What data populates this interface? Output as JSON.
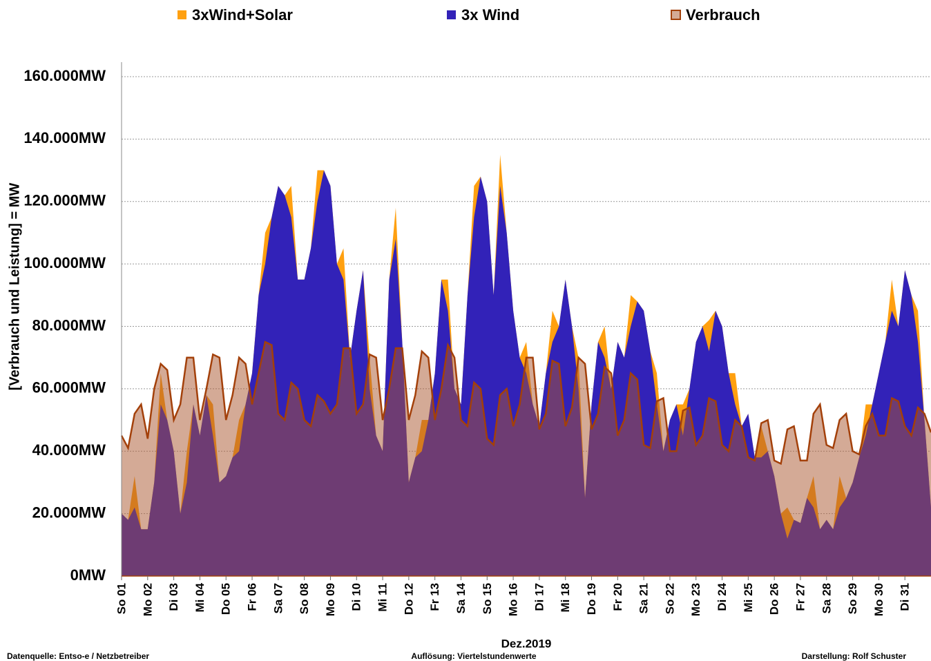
{
  "chart_data": {
    "type": "area",
    "xlabel": "Dez.2019",
    "ylabel": "[Verbrauch und Leistung] = MW",
    "footer": [
      "Datenquelle: Entso-e  / Netzbetreiber",
      "Auflösung: Viertelstundenwerte",
      "Darstellung: Rolf Schuster"
    ],
    "categories": [
      "So 01",
      null,
      null,
      null,
      "Mo 02",
      null,
      null,
      null,
      "Di 03",
      null,
      null,
      null,
      "Mi 04",
      null,
      null,
      null,
      "Do 05",
      null,
      null,
      null,
      "Fr 06",
      null,
      null,
      null,
      "Sa 07",
      null,
      null,
      null,
      "So 08",
      null,
      null,
      null,
      "Mo 09",
      null,
      null,
      null,
      "Di 10",
      null,
      null,
      null,
      "Mi 11",
      null,
      null,
      null,
      "Do 12",
      null,
      null,
      null,
      "Fr 13",
      null,
      null,
      null,
      "Sa 14",
      null,
      null,
      null,
      "So 15",
      null,
      null,
      null,
      "Mo 16",
      null,
      null,
      null,
      "Di 17",
      null,
      null,
      null,
      "Mi 18",
      null,
      null,
      null,
      "Do 19",
      null,
      null,
      null,
      "Fr 20",
      null,
      null,
      null,
      "Sa 21",
      null,
      null,
      null,
      "So 22",
      null,
      null,
      null,
      "Mo 23",
      null,
      null,
      null,
      "Di 24",
      null,
      null,
      null,
      "Mi 25",
      null,
      null,
      null,
      "Do 26",
      null,
      null,
      null,
      "Fr 27",
      null,
      null,
      null,
      "Sa 28",
      null,
      null,
      null,
      "So 29",
      null,
      null,
      null,
      "Mo 30",
      null,
      null,
      null,
      "Di 31",
      null,
      null,
      null,
      null
    ],
    "series": [
      {
        "name": "3xWind+Solar",
        "color": "#ffa010",
        "values": [
          20000,
          18000,
          32000,
          15000,
          15000,
          30000,
          65000,
          50000,
          40000,
          20000,
          40000,
          55000,
          45000,
          58000,
          55000,
          30000,
          32000,
          38000,
          50000,
          55000,
          65000,
          90000,
          110000,
          115000,
          125000,
          122000,
          125000,
          95000,
          95000,
          105000,
          130000,
          130000,
          125000,
          100000,
          105000,
          70000,
          85000,
          98000,
          70000,
          45000,
          40000,
          95000,
          118000,
          75000,
          30000,
          38000,
          50000,
          50000,
          65000,
          95000,
          95000,
          60000,
          55000,
          90000,
          125000,
          128000,
          120000,
          90000,
          135000,
          110000,
          85000,
          70000,
          75000,
          55000,
          48000,
          65000,
          85000,
          80000,
          95000,
          80000,
          70000,
          25000,
          55000,
          75000,
          80000,
          60000,
          75000,
          70000,
          90000,
          88000,
          85000,
          72000,
          65000,
          40000,
          50000,
          55000,
          55000,
          60000,
          75000,
          80000,
          82000,
          85000,
          80000,
          65000,
          65000,
          48000,
          52000,
          38000,
          48000,
          40000,
          32000,
          20000,
          22000,
          18000,
          17000,
          25000,
          32000,
          15000,
          18000,
          15000,
          32000,
          25000,
          30000,
          38000,
          55000,
          55000,
          65000,
          75000,
          95000,
          80000,
          98000,
          90000,
          85000,
          50000,
          22000
        ]
      },
      {
        "name": "3x Wind",
        "color": "#3222b8",
        "values": [
          20000,
          18000,
          22000,
          15000,
          15000,
          30000,
          55000,
          50000,
          40000,
          20000,
          30000,
          55000,
          45000,
          58000,
          45000,
          30000,
          32000,
          38000,
          40000,
          55000,
          65000,
          90000,
          100000,
          115000,
          125000,
          122000,
          115000,
          95000,
          95000,
          105000,
          120000,
          130000,
          125000,
          100000,
          95000,
          70000,
          85000,
          98000,
          60000,
          45000,
          40000,
          95000,
          108000,
          75000,
          30000,
          38000,
          40000,
          50000,
          65000,
          95000,
          85000,
          60000,
          55000,
          90000,
          115000,
          128000,
          120000,
          90000,
          125000,
          110000,
          85000,
          70000,
          65000,
          55000,
          48000,
          65000,
          75000,
          80000,
          95000,
          80000,
          60000,
          25000,
          55000,
          75000,
          70000,
          60000,
          75000,
          70000,
          80000,
          88000,
          85000,
          72000,
          55000,
          40000,
          50000,
          55000,
          45000,
          60000,
          75000,
          80000,
          72000,
          85000,
          80000,
          65000,
          55000,
          48000,
          52000,
          38000,
          38000,
          40000,
          32000,
          20000,
          12000,
          18000,
          17000,
          25000,
          22000,
          15000,
          18000,
          15000,
          22000,
          25000,
          30000,
          38000,
          45000,
          55000,
          65000,
          75000,
          85000,
          80000,
          98000,
          90000,
          75000,
          50000,
          22000
        ]
      },
      {
        "name": "Verbrauch",
        "color": "#a9552e",
        "line_color": "#a3400a",
        "values": [
          45000,
          41000,
          52000,
          55000,
          44000,
          60000,
          68000,
          66000,
          50000,
          55000,
          70000,
          70000,
          50000,
          60000,
          71000,
          70000,
          50000,
          58000,
          70000,
          68000,
          55000,
          65000,
          75000,
          74000,
          52000,
          50000,
          62000,
          60000,
          50000,
          48000,
          58000,
          56000,
          52000,
          55000,
          73000,
          73000,
          52000,
          55000,
          71000,
          70000,
          50000,
          60000,
          73000,
          73000,
          50000,
          58000,
          72000,
          70000,
          50000,
          60000,
          74000,
          70000,
          50000,
          48000,
          62000,
          60000,
          44000,
          42000,
          58000,
          60000,
          48000,
          55000,
          70000,
          70000,
          47000,
          52000,
          69000,
          68000,
          48000,
          54000,
          70000,
          68000,
          47000,
          52000,
          67000,
          65000,
          45000,
          50000,
          65000,
          63000,
          42000,
          41000,
          56000,
          57000,
          40000,
          40000,
          53000,
          54000,
          42000,
          45000,
          57000,
          56000,
          42000,
          40000,
          50000,
          48000,
          38000,
          37000,
          49000,
          50000,
          37000,
          36000,
          47000,
          48000,
          37000,
          37000,
          52000,
          55000,
          42000,
          41000,
          50000,
          52000,
          40000,
          39000,
          48000,
          52000,
          45000,
          45000,
          57000,
          56000,
          48000,
          45000,
          54000,
          52000,
          46000
        ]
      }
    ],
    "ylim": [
      0,
      160000
    ],
    "yticks": [
      {
        "value": 0,
        "label": "0MW"
      },
      {
        "value": 20000,
        "label": "20.000MW"
      },
      {
        "value": 40000,
        "label": "40.000MW"
      },
      {
        "value": 60000,
        "label": "60.000MW"
      },
      {
        "value": 80000,
        "label": "80.000MW"
      },
      {
        "value": 100000,
        "label": "100.000MW"
      },
      {
        "value": 120000,
        "label": "120.000MW"
      },
      {
        "value": 140000,
        "label": "140.000MW"
      },
      {
        "value": 160000,
        "label": "160.000MW"
      }
    ],
    "grid": true,
    "legend": "top"
  }
}
